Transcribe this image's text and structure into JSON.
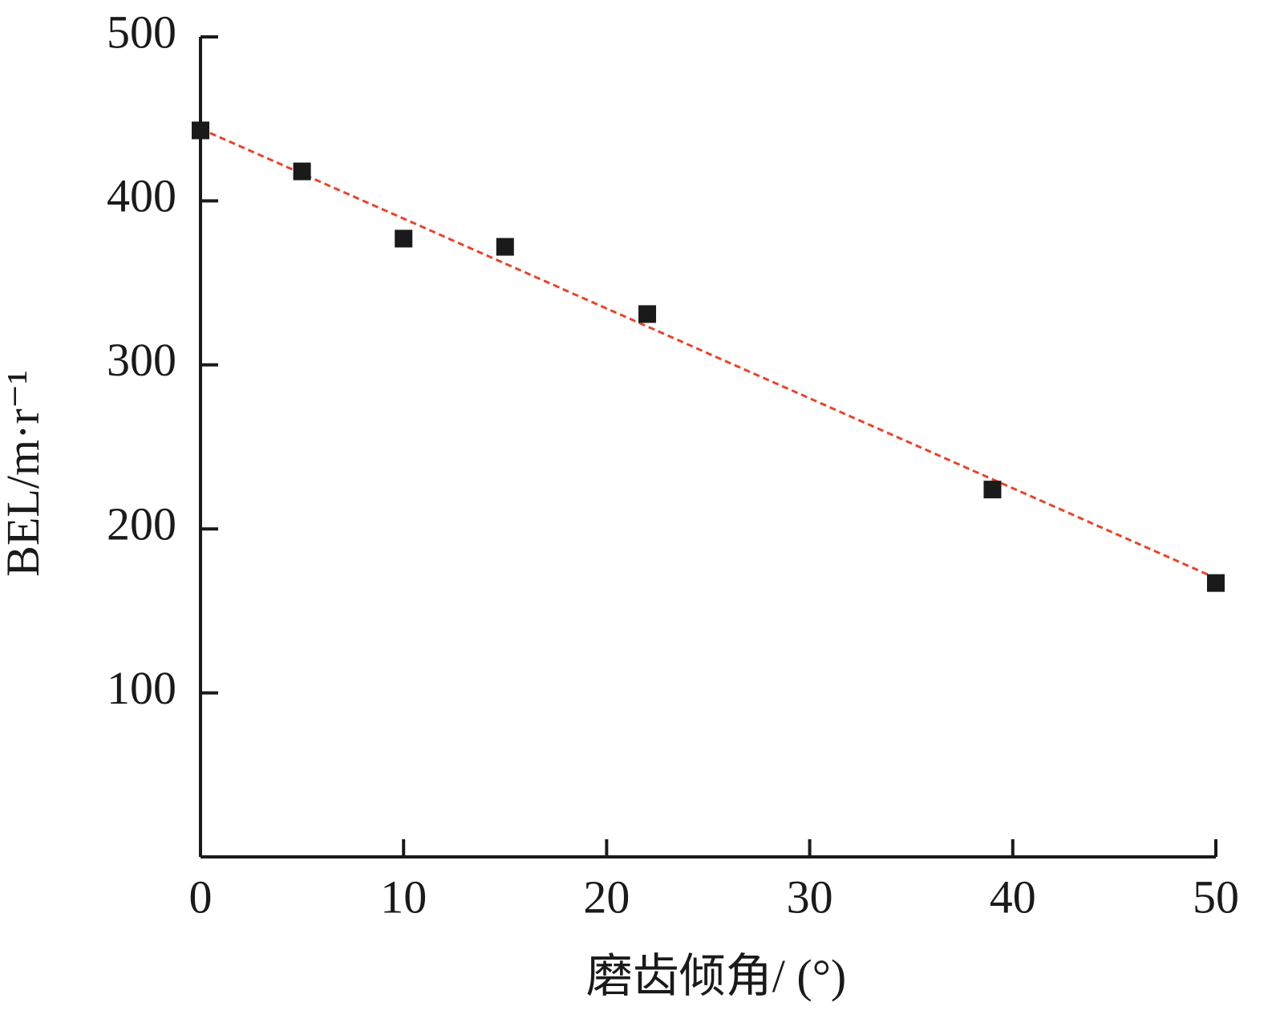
{
  "chart_data": {
    "type": "scatter",
    "x_label": "磨齿倾角/ (°)",
    "y_label": "BEL/m·r⁻¹",
    "x": [
      0,
      5,
      10,
      15,
      22,
      39,
      50
    ],
    "values": [
      443,
      418,
      377,
      372,
      331,
      224,
      167
    ],
    "color": "#1a1a1a",
    "trendline": {
      "x": [
        0,
        50
      ],
      "values": [
        444,
        170
      ],
      "color": "#e8442a"
    },
    "xlim": [
      0,
      50
    ],
    "xticks": [
      0,
      10,
      20,
      30,
      40,
      50
    ],
    "ylim": [
      0,
      500
    ],
    "yticks": [
      100,
      200,
      300,
      400,
      500
    ],
    "grid": false
  }
}
